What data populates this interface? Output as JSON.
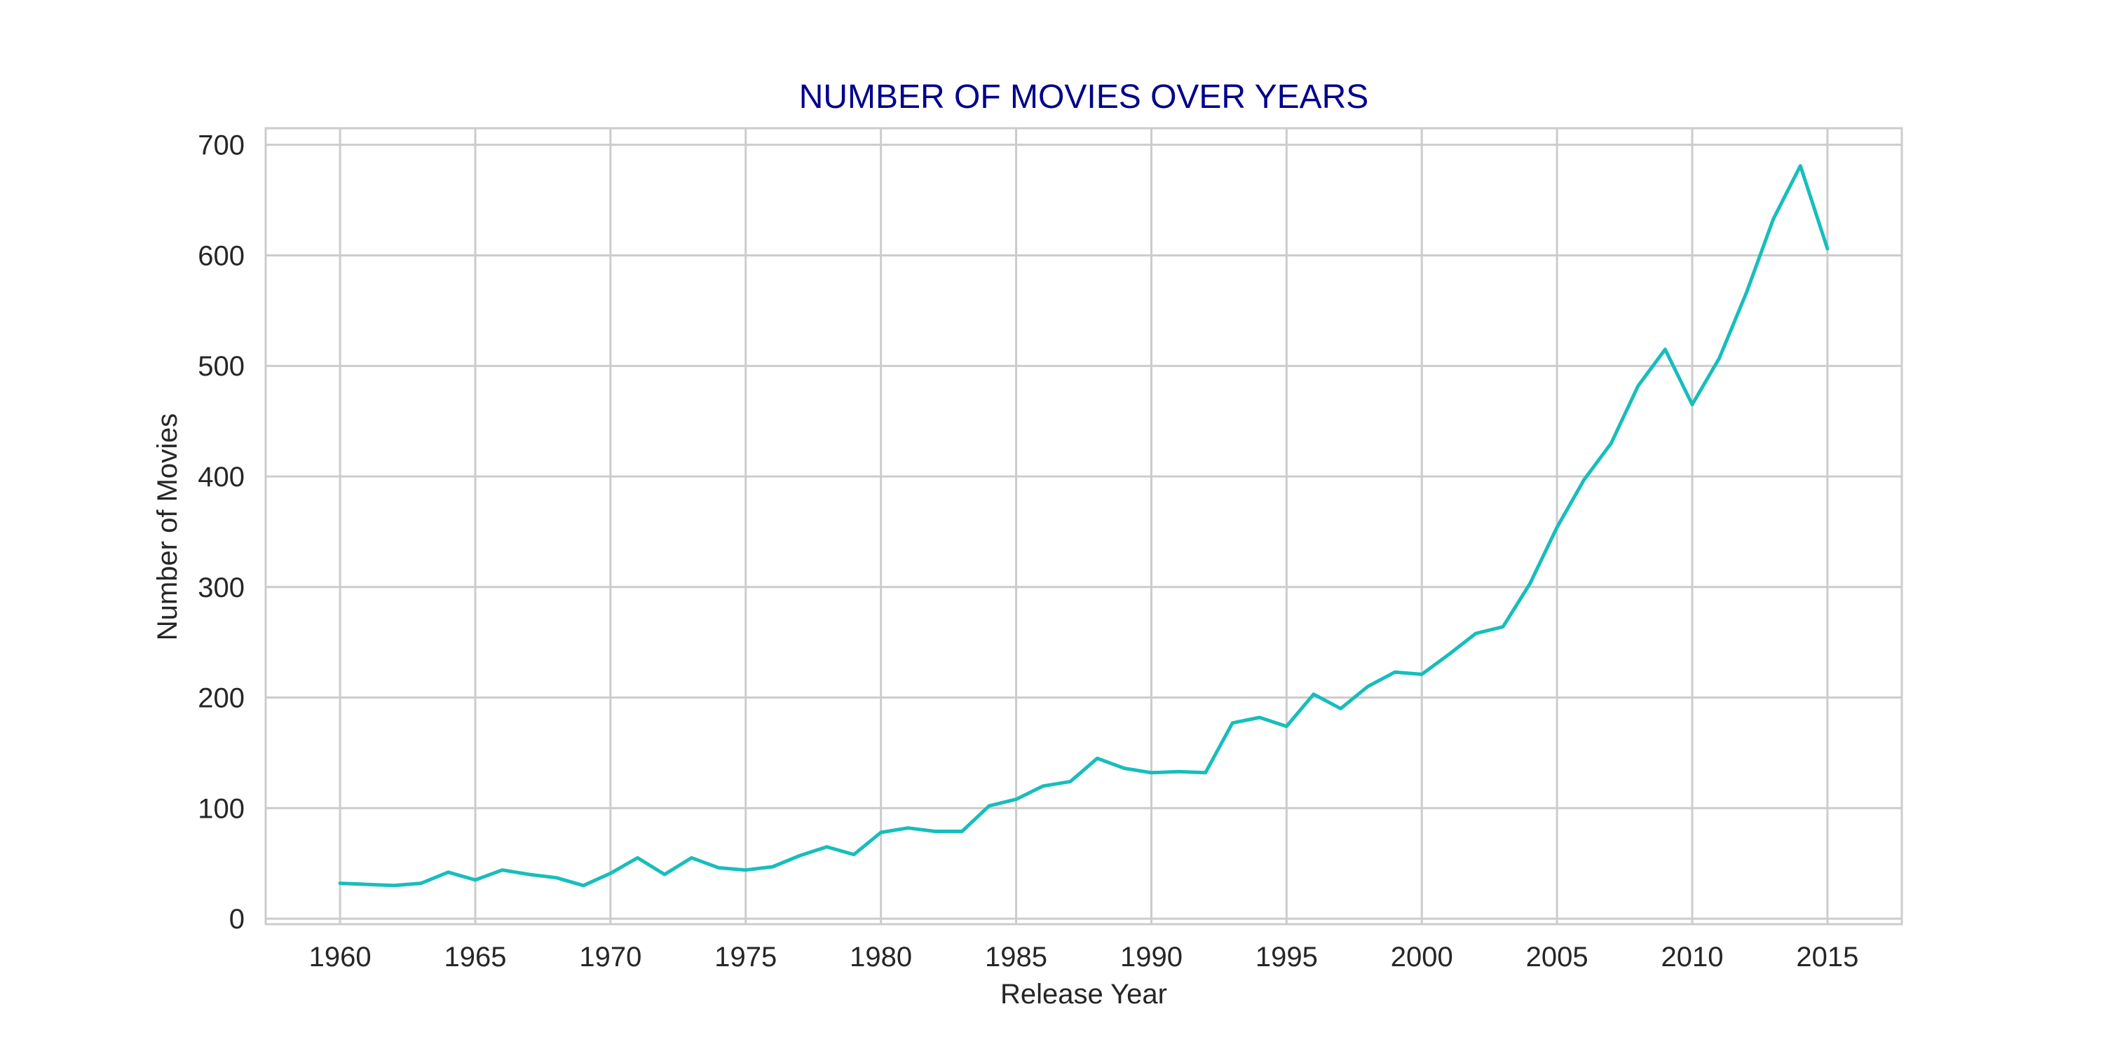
{
  "chart_data": {
    "type": "line",
    "title": "NUMBER OF MOVIES OVER YEARS",
    "xlabel": "Release Year",
    "ylabel": "Number of Movies",
    "xlim": [
      1957.25,
      2017.75
    ],
    "ylim": [
      -5,
      715
    ],
    "x_ticks": [
      "1960",
      "1965",
      "1970",
      "1975",
      "1980",
      "1985",
      "1990",
      "1995",
      "2000",
      "2005",
      "2010",
      "2015"
    ],
    "y_ticks": [
      "0",
      "100",
      "200",
      "300",
      "400",
      "500",
      "600",
      "700"
    ],
    "grid": true,
    "legend": "none",
    "colors": {
      "line": "#17BEBB",
      "title": "#00008B",
      "grid": "#CCCCCC",
      "frame": "#CCCCCC"
    },
    "series": [
      {
        "x": [
          1960,
          1961,
          1962,
          1963,
          1964,
          1965,
          1966,
          1967,
          1968,
          1969,
          1970,
          1971,
          1972,
          1973,
          1974,
          1975,
          1976,
          1977,
          1978,
          1979,
          1980,
          1981,
          1982,
          1983,
          1984,
          1985,
          1986,
          1987,
          1988,
          1989,
          1990,
          1991,
          1992,
          1993,
          1994,
          1995,
          1996,
          1997,
          1998,
          1999,
          2000,
          2001,
          2002,
          2003,
          2004,
          2005,
          2006,
          2007,
          2008,
          2009,
          2010,
          2011,
          2012,
          2013,
          2014,
          2015
        ],
        "y": [
          32,
          31,
          30,
          32,
          42,
          35,
          44,
          40,
          37,
          30,
          41,
          55,
          40,
          55,
          46,
          44,
          47,
          57,
          65,
          58,
          78,
          82,
          79,
          79,
          102,
          108,
          120,
          124,
          145,
          136,
          132,
          133,
          132,
          177,
          182,
          174,
          203,
          190,
          210,
          223,
          221,
          239,
          258,
          264,
          303,
          354,
          397,
          430,
          482,
          515,
          465,
          507,
          566,
          633,
          681,
          606
        ]
      }
    ]
  }
}
